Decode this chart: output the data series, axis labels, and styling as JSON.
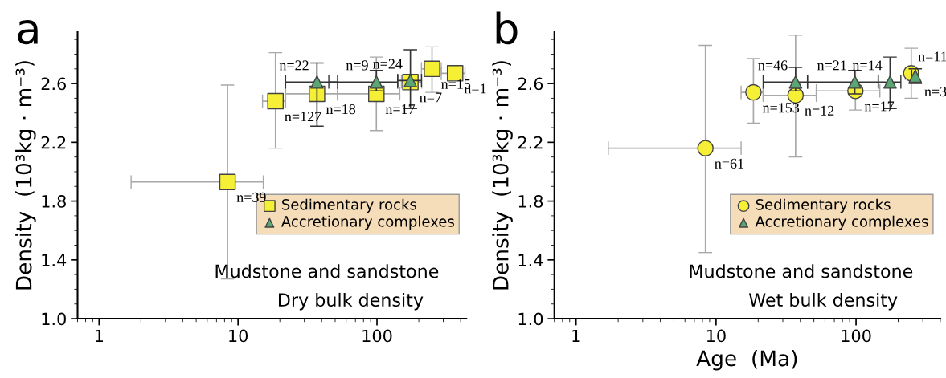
{
  "chart_data": [
    {
      "type": "scatter",
      "title": "a",
      "ylabel": "Density  (10³kg · m⁻³)",
      "xlim": [
        0.7,
        440
      ],
      "ylim": [
        1.0,
        2.95
      ],
      "log": "x",
      "xticks": [
        1,
        10,
        100
      ],
      "yticks": [
        {
          "value": 1.0,
          "label": "1.0"
        },
        {
          "value": 1.4,
          "label": "1.4"
        },
        {
          "value": 1.8,
          "label": "1.8"
        },
        {
          "value": 2.2,
          "label": "2.2"
        },
        {
          "value": 2.6,
          "label": "2.6"
        }
      ],
      "grid": false,
      "legend": "right",
      "series": [
        {
          "name": "Sedimentary rocks",
          "color": "#f5ef35",
          "marker": "square",
          "x": [
            8.4,
            18.6,
            37,
            99,
            174,
            249,
            365
          ],
          "values": [
            1.93,
            2.48,
            2.53,
            2.53,
            2.61,
            2.7,
            2.67
          ],
          "errors": [
            [
              1.27,
              2.59
            ],
            [
              2.16,
              2.81
            ],
            null,
            [
              2.28,
              2.78
            ],
            null,
            [
              2.54,
              2.85
            ],
            null
          ],
          "xerrors": [
            [
              1.7,
              15.2
            ],
            [
              15,
              22
            ],
            [
              22,
              52
            ],
            [
              52,
              146
            ],
            [
              150,
              210
            ],
            [
              209,
              290
            ],
            [
              290,
              430
            ]
          ]
        },
        {
          "name": "Accretionary complexes",
          "color": "#5aa773",
          "marker": "triangle",
          "x": [
            37,
            99,
            174
          ],
          "values": [
            2.61,
            2.61,
            2.62
          ],
          "errors": [
            [
              2.31,
              2.74
            ],
            [
              2.55,
              2.69
            ],
            [
              2.43,
              2.83
            ]
          ],
          "xerrors": [
            [
              22,
              52
            ],
            [
              45,
              141
            ],
            [
              141,
              209
            ]
          ]
        }
      ],
      "annotations": [
        {
          "text": "n=39",
          "x": 8.4,
          "y": 1.93
        },
        {
          "text": "n=127",
          "x": 18.6,
          "y": 2.48
        },
        {
          "text": "n=18",
          "x": 37,
          "y": 2.53
        },
        {
          "text": "n=17",
          "x": 99,
          "y": 2.53
        },
        {
          "text": "n=7",
          "x": 174,
          "y": 2.61
        },
        {
          "text": "n=15",
          "x": 249,
          "y": 2.7
        },
        {
          "text": "n=1",
          "x": 365,
          "y": 2.67
        },
        {
          "text": "n=22",
          "x": 37,
          "y": 2.61
        },
        {
          "text": "n=9",
          "x": 99,
          "y": 2.61
        },
        {
          "text": "n=24",
          "x": 174,
          "y": 2.62
        },
        "Mudstone and sandstone",
        "Dry bulk density"
      ]
    },
    {
      "type": "scatter",
      "title": "b",
      "xlabel": "Age  (Ma)",
      "ylabel": "Density  (10³kg · m⁻³)",
      "xlim": [
        0.7,
        400
      ],
      "ylim": [
        1.0,
        2.95
      ],
      "log": "x",
      "xticks": [
        1,
        10,
        100
      ],
      "yticks": [
        {
          "value": 1.0,
          "label": "1.0"
        },
        {
          "value": 1.4,
          "label": "1.4"
        },
        {
          "value": 1.8,
          "label": "1.8"
        },
        {
          "value": 2.2,
          "label": "2.2"
        },
        {
          "value": 2.6,
          "label": "2.6"
        }
      ],
      "grid": false,
      "legend": "right",
      "series": [
        {
          "name": "Sedimentary rocks",
          "color": "#f5ef35",
          "marker": "circle",
          "x": [
            8.4,
            18.5,
            37,
            99,
            248
          ],
          "values": [
            2.16,
            2.54,
            2.52,
            2.55,
            2.67
          ],
          "errors": [
            [
              1.45,
              2.86
            ],
            [
              2.33,
              2.77
            ],
            [
              2.1,
              2.93
            ],
            [
              2.42,
              2.69
            ],
            [
              2.5,
              2.84
            ]
          ],
          "xerrors": [
            [
              1.7,
              15.1
            ],
            [
              15.1,
              21.7
            ],
            [
              21.7,
              52
            ],
            [
              52,
              148
            ],
            [
              225,
              270
            ]
          ]
        },
        {
          "name": "Accretionary complexes",
          "color": "#5aa773",
          "marker": "triangle",
          "x": [
            37,
            98,
            175,
            265
          ],
          "values": [
            2.61,
            2.61,
            2.61,
            2.65
          ],
          "errors": [
            [
              2.55,
              2.71
            ],
            [
              2.53,
              2.69
            ],
            [
              2.43,
              2.78
            ],
            [
              2.6,
              2.7
            ]
          ],
          "xerrors": [
            [
              21.7,
              45
            ],
            [
              45,
              144
            ],
            [
              144,
              209
            ],
            [
              250,
              280
            ]
          ]
        }
      ],
      "annotations": [
        {
          "text": "n=61",
          "x": 8.4,
          "y": 2.16
        },
        {
          "text": "n=153",
          "x": 18.5,
          "y": 2.54
        },
        {
          "text": "n=12",
          "x": 37,
          "y": 2.52
        },
        {
          "text": "n=17",
          "x": 99,
          "y": 2.55
        },
        {
          "text": "n=11",
          "x": 248,
          "y": 2.67
        },
        {
          "text": "n=46",
          "x": 37,
          "y": 2.61
        },
        {
          "text": "n=21",
          "x": 98,
          "y": 2.61
        },
        {
          "text": "n=14",
          "x": 175,
          "y": 2.61
        },
        {
          "text": "n=3",
          "x": 265,
          "y": 2.65
        },
        "Mudstone and sandstone",
        "Wet bulk density"
      ]
    }
  ]
}
